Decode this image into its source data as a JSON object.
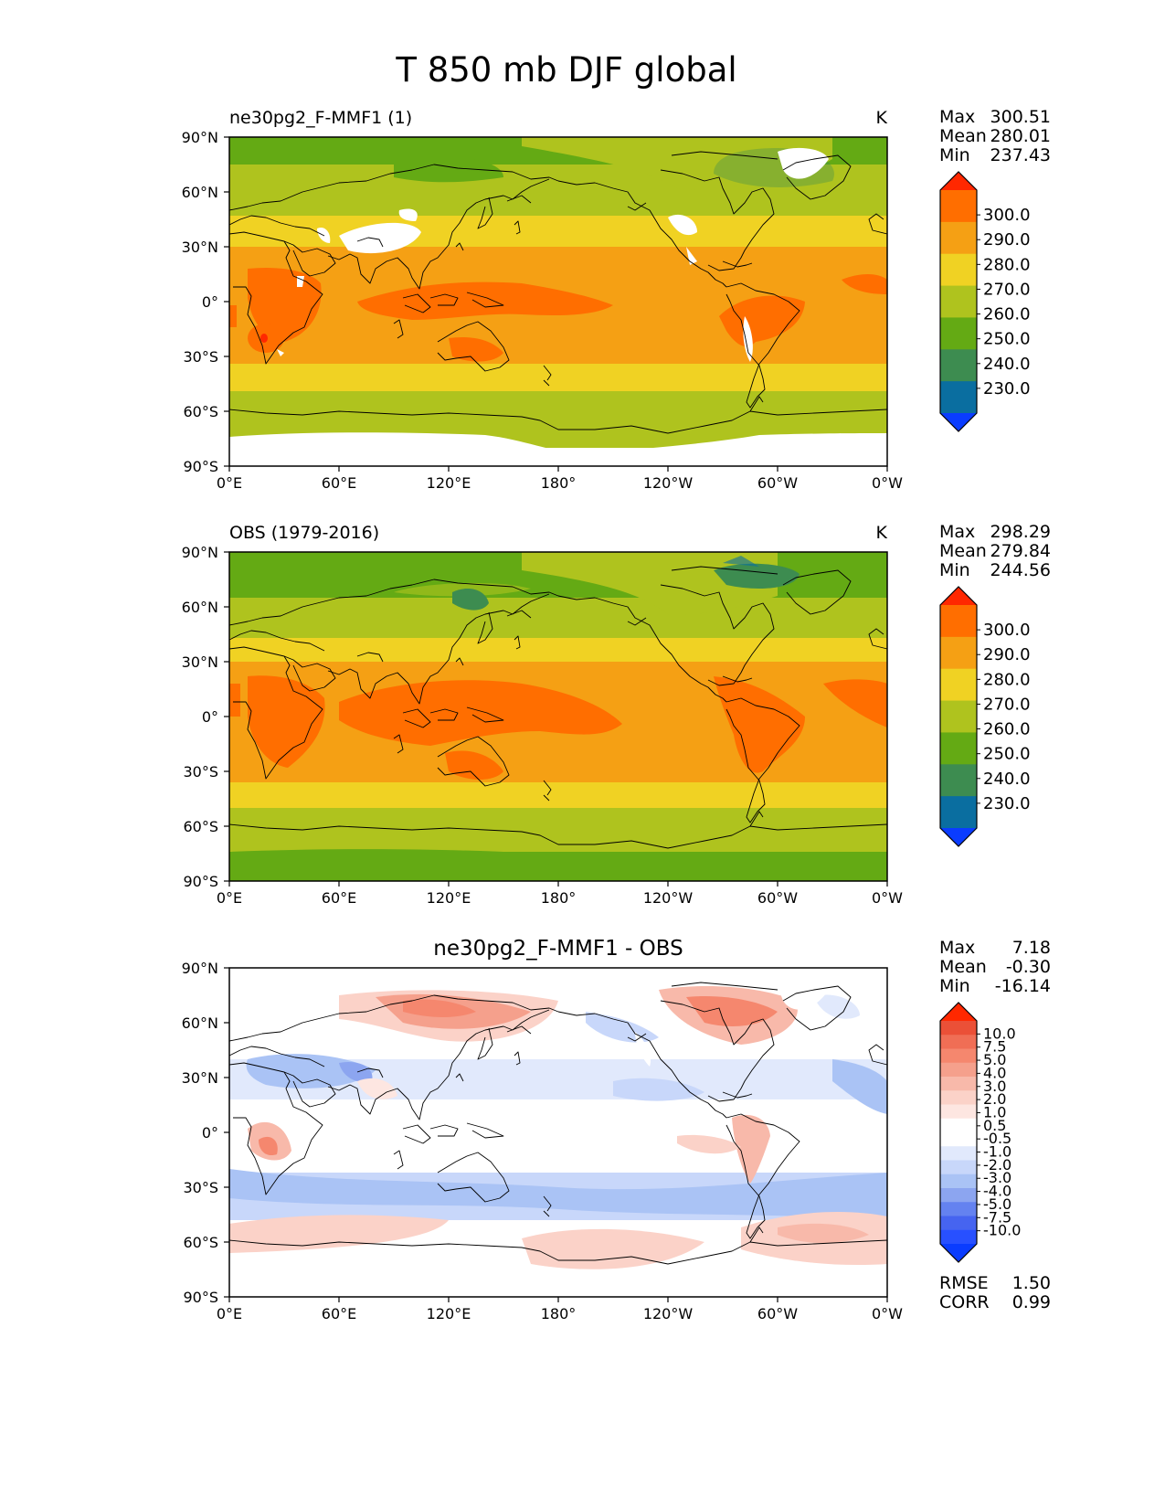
{
  "figure_title": "T 850 mb DJF global",
  "x_tick_labels": [
    "0°E",
    "60°E",
    "120°E",
    "180°",
    "120°W",
    "60°W",
    "0°W"
  ],
  "y_tick_labels": [
    "90°N",
    "60°N",
    "30°N",
    "0°",
    "30°S",
    "60°S",
    "90°S"
  ],
  "colors": {
    "temperature_scale": [
      "#0a3cff",
      "#0a6ea0",
      "#3d8c50",
      "#64aa14",
      "#afc31e",
      "#f0d223",
      "#f5a014",
      "#ff6e00",
      "#ff2800"
    ],
    "difference_scale": [
      "#0a3cff",
      "#2850ff",
      "#4664f0",
      "#6482f0",
      "#8ca5f0",
      "#aac3f5",
      "#c8d7fa",
      "#e1e9fc",
      "#ffffff",
      "#ffffff",
      "#fde6e1",
      "#fbd2c8",
      "#f8b9aa",
      "#f5a08c",
      "#f5876e",
      "#f06e55",
      "#eb5037",
      "#ff2800"
    ],
    "land_outline": "#000000",
    "missing": "#ffffff"
  },
  "chart_data": [
    {
      "type": "heatmap",
      "map_projection": "plate carree",
      "title_left": "ne30pg2_F-MMF1 (1)",
      "title_right": "K",
      "stats": {
        "max_label": "Max",
        "max": "300.51",
        "mean_label": "Mean",
        "mean": "280.01",
        "min_label": "Min",
        "min": "237.43"
      },
      "colorbar_labels": [
        "300.0",
        "290.0",
        "280.0",
        "270.0",
        "260.0",
        "250.0",
        "240.0",
        "230.0"
      ],
      "colorbar_extend": "both",
      "xlim": [
        0,
        360
      ],
      "ylim": [
        -90,
        90
      ]
    },
    {
      "type": "heatmap",
      "map_projection": "plate carree",
      "title_left": "OBS (1979-2016)",
      "title_right": "K",
      "stats": {
        "max_label": "Max",
        "max": "298.29",
        "mean_label": "Mean",
        "mean": "279.84",
        "min_label": "Min",
        "min": "244.56"
      },
      "colorbar_labels": [
        "300.0",
        "290.0",
        "280.0",
        "270.0",
        "260.0",
        "250.0",
        "240.0",
        "230.0"
      ],
      "colorbar_extend": "both",
      "xlim": [
        0,
        360
      ],
      "ylim": [
        -90,
        90
      ]
    },
    {
      "type": "heatmap",
      "map_projection": "plate carree",
      "title_center": "ne30pg2_F-MMF1 - OBS",
      "stats": {
        "max_label": "Max",
        "max": "7.18",
        "mean_label": "Mean",
        "mean": "-0.30",
        "min_label": "Min",
        "min": "-16.14"
      },
      "colorbar_labels": [
        "10.0",
        "7.5",
        "5.0",
        "4.0",
        "3.0",
        "2.0",
        "1.0",
        "0.5",
        "-0.5",
        "-1.0",
        "-2.0",
        "-3.0",
        "-4.0",
        "-5.0",
        "-7.5",
        "-10.0"
      ],
      "colorbar_extend": "both",
      "metrics": {
        "rmse_label": "RMSE",
        "rmse": "1.50",
        "corr_label": "CORR",
        "corr": "0.99"
      },
      "xlim": [
        0,
        360
      ],
      "ylim": [
        -90,
        90
      ]
    }
  ]
}
